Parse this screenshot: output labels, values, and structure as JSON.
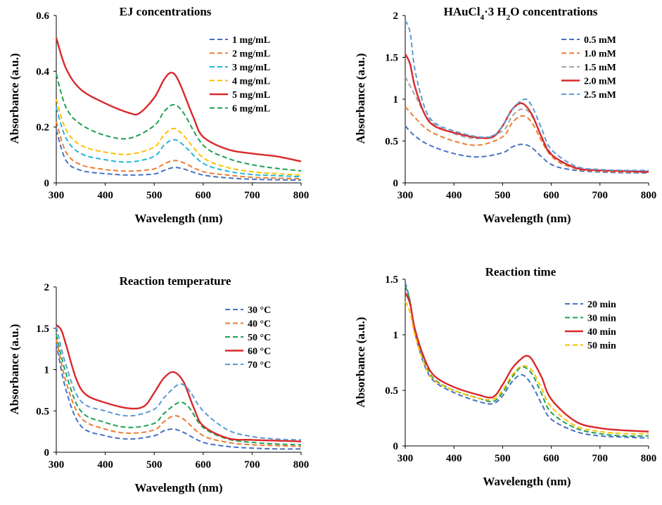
{
  "chart_data": [
    {
      "type": "line",
      "title": "EJ concentrations",
      "xlabel": "Wavelength  (nm)",
      "ylabel": "Absorbance  (a.u.)",
      "xlim": [
        300,
        800
      ],
      "ylim": [
        0,
        0.6
      ],
      "xticks": [
        300,
        400,
        500,
        600,
        700,
        800
      ],
      "yticks": [
        0,
        0.2,
        0.4,
        0.6
      ],
      "ytick_labels": [
        "0",
        "0.2",
        "0.4",
        "0.6"
      ],
      "legend_position": "top-right",
      "series": [
        {
          "name": "1 mg/mL",
          "color": "#4472C4",
          "dash": true,
          "x": [
            300,
            320,
            350,
            400,
            450,
            500,
            520,
            540,
            560,
            600,
            650,
            700,
            750,
            800
          ],
          "y": [
            0.19,
            0.08,
            0.045,
            0.033,
            0.028,
            0.032,
            0.045,
            0.055,
            0.05,
            0.028,
            0.018,
            0.013,
            0.011,
            0.01
          ]
        },
        {
          "name": "2 mg/mL",
          "color": "#ED7D31",
          "dash": true,
          "x": [
            300,
            320,
            350,
            400,
            450,
            500,
            520,
            540,
            560,
            600,
            650,
            700,
            750,
            800
          ],
          "y": [
            0.22,
            0.11,
            0.065,
            0.048,
            0.042,
            0.05,
            0.068,
            0.08,
            0.072,
            0.04,
            0.028,
            0.02,
            0.017,
            0.015
          ]
        },
        {
          "name": "3 mg/mL",
          "color": "#22B8D6",
          "dash": true,
          "x": [
            300,
            320,
            350,
            400,
            450,
            500,
            520,
            540,
            560,
            600,
            650,
            700,
            750,
            800
          ],
          "y": [
            0.27,
            0.16,
            0.105,
            0.083,
            0.075,
            0.095,
            0.135,
            0.155,
            0.135,
            0.07,
            0.042,
            0.03,
            0.026,
            0.022
          ]
        },
        {
          "name": "4 mg/mL",
          "color": "#FFC000",
          "dash": true,
          "x": [
            300,
            320,
            350,
            400,
            450,
            500,
            520,
            540,
            560,
            600,
            650,
            700,
            750,
            800
          ],
          "y": [
            0.3,
            0.19,
            0.135,
            0.11,
            0.103,
            0.128,
            0.172,
            0.195,
            0.17,
            0.09,
            0.055,
            0.04,
            0.033,
            0.028
          ]
        },
        {
          "name": "5 mg/mL",
          "color": "#D9292B",
          "dash": false,
          "x": [
            300,
            320,
            350,
            400,
            450,
            470,
            500,
            520,
            535,
            550,
            580,
            600,
            650,
            700,
            750,
            800
          ],
          "y": [
            0.52,
            0.41,
            0.335,
            0.285,
            0.25,
            0.25,
            0.305,
            0.37,
            0.395,
            0.365,
            0.235,
            0.165,
            0.12,
            0.105,
            0.095,
            0.077
          ]
        },
        {
          "name": "6 mg/mL",
          "color": "#1FA055",
          "dash": true,
          "x": [
            300,
            320,
            350,
            400,
            450,
            500,
            520,
            540,
            560,
            600,
            650,
            700,
            750,
            800
          ],
          "y": [
            0.39,
            0.27,
            0.21,
            0.17,
            0.16,
            0.205,
            0.255,
            0.28,
            0.25,
            0.135,
            0.088,
            0.065,
            0.052,
            0.043
          ]
        }
      ]
    },
    {
      "type": "line",
      "title": "HAuCl4·3 H2O concentrations",
      "xlabel": "Wavelength  (nm)",
      "ylabel": "Absorbance  (a.u.)",
      "xlim": [
        300,
        800
      ],
      "ylim": [
        0,
        2
      ],
      "xticks": [
        300,
        400,
        500,
        600,
        700,
        800
      ],
      "yticks": [
        0,
        0.5,
        1,
        1.5,
        2
      ],
      "ytick_labels": [
        "0",
        "0.5",
        "1",
        "1.5",
        "2"
      ],
      "legend_position": "top-right",
      "series": [
        {
          "name": "0.5 mM",
          "color": "#4472C4",
          "dash": true,
          "x": [
            300,
            320,
            350,
            400,
            450,
            500,
            520,
            540,
            560,
            600,
            650,
            700,
            750,
            800
          ],
          "y": [
            0.68,
            0.56,
            0.45,
            0.35,
            0.31,
            0.36,
            0.43,
            0.46,
            0.42,
            0.22,
            0.15,
            0.13,
            0.12,
            0.12
          ]
        },
        {
          "name": "1.0 mM",
          "color": "#ED7D31",
          "dash": true,
          "x": [
            300,
            320,
            350,
            400,
            450,
            500,
            520,
            540,
            560,
            600,
            650,
            700,
            750,
            800
          ],
          "y": [
            0.91,
            0.78,
            0.62,
            0.5,
            0.45,
            0.55,
            0.72,
            0.8,
            0.72,
            0.32,
            0.17,
            0.14,
            0.13,
            0.13
          ]
        },
        {
          "name": "1.5 mM",
          "color": "#A5A5A5",
          "dash": true,
          "x": [
            300,
            320,
            350,
            400,
            450,
            500,
            520,
            540,
            560,
            600,
            650,
            700,
            750,
            800
          ],
          "y": [
            1.27,
            1.05,
            0.75,
            0.59,
            0.53,
            0.62,
            0.8,
            0.88,
            0.8,
            0.35,
            0.18,
            0.15,
            0.14,
            0.14
          ]
        },
        {
          "name": "2.0 mM",
          "color": "#D9292B",
          "dash": false,
          "x": [
            300,
            310,
            320,
            340,
            360,
            400,
            450,
            480,
            500,
            520,
            540,
            560,
            580,
            600,
            650,
            700,
            750,
            800
          ],
          "y": [
            1.54,
            1.42,
            1.15,
            0.82,
            0.68,
            0.6,
            0.54,
            0.55,
            0.68,
            0.88,
            0.95,
            0.82,
            0.55,
            0.34,
            0.18,
            0.15,
            0.14,
            0.13
          ]
        },
        {
          "name": "2.5 mM",
          "color": "#5B9BD5",
          "dash": true,
          "x": [
            300,
            310,
            320,
            340,
            360,
            400,
            450,
            480,
            500,
            520,
            545,
            560,
            580,
            600,
            650,
            700,
            750,
            800
          ],
          "y": [
            1.94,
            1.8,
            1.35,
            0.9,
            0.72,
            0.62,
            0.55,
            0.56,
            0.68,
            0.88,
            1.0,
            0.92,
            0.65,
            0.4,
            0.2,
            0.16,
            0.15,
            0.15
          ]
        }
      ]
    },
    {
      "type": "line",
      "title": "Reaction temperature",
      "xlabel": "Wavelength  (nm)",
      "ylabel": "Absorbance  (a.u.)",
      "xlim": [
        300,
        800
      ],
      "ylim": [
        0,
        2
      ],
      "xticks": [
        300,
        400,
        500,
        600,
        700,
        800
      ],
      "yticks": [
        0,
        0.5,
        1,
        1.5,
        2
      ],
      "ytick_labels": [
        "0",
        "0.5",
        "1",
        "1.5",
        "2"
      ],
      "legend_position": "top-right",
      "series": [
        {
          "name": "30 °C",
          "color": "#4472C4",
          "dash": true,
          "x": [
            300,
            320,
            350,
            400,
            450,
            500,
            520,
            540,
            560,
            600,
            650,
            700,
            750,
            800
          ],
          "y": [
            1.32,
            0.75,
            0.32,
            0.2,
            0.16,
            0.2,
            0.26,
            0.28,
            0.24,
            0.12,
            0.07,
            0.05,
            0.04,
            0.04
          ]
        },
        {
          "name": "40 °C",
          "color": "#ED7D31",
          "dash": true,
          "x": [
            300,
            320,
            350,
            400,
            450,
            500,
            520,
            540,
            560,
            600,
            650,
            700,
            750,
            800
          ],
          "y": [
            1.37,
            0.85,
            0.42,
            0.28,
            0.23,
            0.27,
            0.37,
            0.44,
            0.4,
            0.2,
            0.12,
            0.09,
            0.08,
            0.07
          ]
        },
        {
          "name": "50 °C",
          "color": "#1FA055",
          "dash": true,
          "x": [
            300,
            320,
            350,
            400,
            450,
            500,
            520,
            550,
            570,
            600,
            650,
            700,
            750,
            800
          ],
          "y": [
            1.42,
            0.95,
            0.5,
            0.36,
            0.3,
            0.35,
            0.47,
            0.6,
            0.55,
            0.3,
            0.16,
            0.12,
            0.1,
            0.09
          ]
        },
        {
          "name": "60 °C",
          "color": "#D9292B",
          "dash": false,
          "x": [
            300,
            310,
            320,
            340,
            360,
            400,
            450,
            480,
            500,
            520,
            540,
            560,
            580,
            600,
            650,
            700,
            750,
            800
          ],
          "y": [
            1.54,
            1.48,
            1.3,
            0.9,
            0.7,
            0.6,
            0.53,
            0.56,
            0.72,
            0.9,
            0.97,
            0.85,
            0.55,
            0.32,
            0.17,
            0.15,
            0.14,
            0.13
          ]
        },
        {
          "name": "70 °C",
          "color": "#5B9BD5",
          "dash": true,
          "x": [
            300,
            320,
            350,
            400,
            450,
            500,
            520,
            550,
            570,
            600,
            650,
            700,
            750,
            800
          ],
          "y": [
            1.52,
            1.05,
            0.62,
            0.5,
            0.44,
            0.52,
            0.66,
            0.82,
            0.76,
            0.5,
            0.27,
            0.19,
            0.16,
            0.15
          ]
        }
      ]
    },
    {
      "type": "line",
      "title": "Reaction time",
      "xlabel": "Wavelength  (nm)",
      "ylabel": "Absorbance  (a.u.)",
      "xlim": [
        300,
        800
      ],
      "ylim": [
        0,
        1.5
      ],
      "xticks": [
        300,
        400,
        500,
        600,
        700,
        800
      ],
      "yticks": [
        0,
        0.5,
        1,
        1.5
      ],
      "ytick_labels": [
        "0",
        "0.5",
        "1",
        "1.5"
      ],
      "legend_position": "top-right",
      "series": [
        {
          "name": "20 min",
          "color": "#4472C4",
          "dash": true,
          "x": [
            300,
            310,
            320,
            340,
            360,
            400,
            450,
            480,
            500,
            520,
            540,
            560,
            580,
            600,
            650,
            700,
            750,
            800
          ],
          "y": [
            1.47,
            1.3,
            1.02,
            0.72,
            0.58,
            0.48,
            0.4,
            0.38,
            0.45,
            0.58,
            0.64,
            0.55,
            0.38,
            0.24,
            0.13,
            0.09,
            0.08,
            0.07
          ]
        },
        {
          "name": "30 min",
          "color": "#1FA055",
          "dash": true,
          "x": [
            300,
            310,
            320,
            340,
            360,
            400,
            450,
            480,
            500,
            520,
            540,
            560,
            580,
            600,
            650,
            700,
            750,
            800
          ],
          "y": [
            1.44,
            1.3,
            1.04,
            0.75,
            0.6,
            0.5,
            0.43,
            0.4,
            0.48,
            0.62,
            0.71,
            0.65,
            0.47,
            0.3,
            0.16,
            0.11,
            0.09,
            0.09
          ]
        },
        {
          "name": "40 min",
          "color": "#D9292B",
          "dash": false,
          "x": [
            300,
            310,
            320,
            340,
            360,
            400,
            450,
            480,
            500,
            520,
            540,
            550,
            560,
            580,
            600,
            650,
            700,
            750,
            800
          ],
          "y": [
            1.38,
            1.28,
            1.05,
            0.78,
            0.63,
            0.53,
            0.46,
            0.44,
            0.55,
            0.7,
            0.79,
            0.81,
            0.78,
            0.62,
            0.42,
            0.22,
            0.16,
            0.14,
            0.13
          ]
        },
        {
          "name": "50 min",
          "color": "#FFC000",
          "dash": true,
          "x": [
            300,
            310,
            320,
            340,
            360,
            400,
            450,
            480,
            500,
            520,
            540,
            560,
            580,
            600,
            650,
            700,
            750,
            800
          ],
          "y": [
            1.3,
            1.2,
            1.0,
            0.73,
            0.59,
            0.5,
            0.43,
            0.42,
            0.5,
            0.64,
            0.72,
            0.68,
            0.52,
            0.35,
            0.18,
            0.13,
            0.11,
            0.11
          ]
        }
      ]
    }
  ]
}
